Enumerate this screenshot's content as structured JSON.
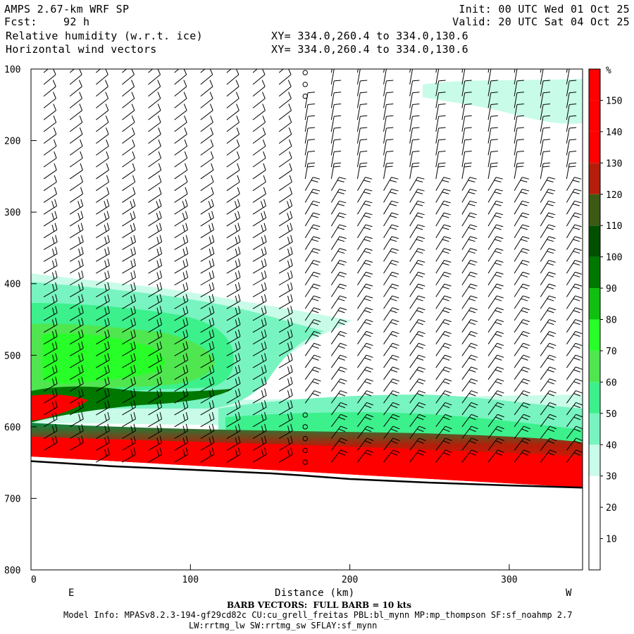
{
  "header": {
    "model": "AMPS 2.67-km WRF SP",
    "fcst_label": "Fcst:",
    "fcst_value": "92 h",
    "field1": "Relative humidity (w.r.t. ice)",
    "field2": "Horizontal wind vectors",
    "xy1": "XY= 334.0,260.4 to 334.0,130.6",
    "xy2": "XY= 334.0,260.4 to 334.0,130.6",
    "init": "Init: 00 UTC Wed 01 Oct 25",
    "valid": "Valid: 20 UTC Sat 04 Oct 25"
  },
  "footer": {
    "barb_note": "BARB VECTORS:  FULL BARB = 10 kts",
    "model_info": "Model Info: MPASv8.2.3-194-gf29cd82c CU:cu_grell_freitas PBL:bl_mynn MP:mp_thompson SF:sf_noahmp 2.7",
    "model_info2": "LW:rrtmg_lw SW:rrtmg_sw SFLAY:sf_mynn"
  },
  "colors": {
    "surface_line": "#000000",
    "low_rh": "#c8fce8",
    "mid_rh": "#3cf08c",
    "high_rh": "#ff0000"
  },
  "chart_data": {
    "type": "heatmap",
    "xlabel": "Distance (km)",
    "x_end_labels": [
      "E",
      "W"
    ],
    "x_ticks": [
      0,
      100,
      200,
      300
    ],
    "y_ticks": [
      100,
      200,
      300,
      400,
      500,
      600,
      700,
      800
    ],
    "xlim": [
      0,
      346
    ],
    "ylim": [
      800,
      100
    ],
    "colorbar": {
      "unit": "%",
      "labels": [
        10,
        20,
        30,
        40,
        50,
        60,
        70,
        80,
        90,
        100,
        110,
        120,
        130,
        140,
        150
      ],
      "colors": [
        "#ffffff",
        "#ffffff",
        "#ffffff",
        "#c8fce8",
        "#78f4c0",
        "#3cf08c",
        "#50e650",
        "#28ff28",
        "#10c010",
        "#007800",
        "#005000",
        "#3c5a14",
        "#b41e0a",
        "#ff0000",
        "#ff0000",
        "#ff0000"
      ]
    },
    "surface_pressure": {
      "x": [
        0,
        50,
        100,
        150,
        170,
        200,
        250,
        300,
        346
      ],
      "p": [
        648,
        655,
        660,
        665,
        668,
        673,
        678,
        682,
        685
      ]
    },
    "rh_regions": [
      {
        "level": "30-40",
        "desc": "upper-right band",
        "x": [
          250,
          346
        ],
        "p": [
          110,
          180
        ]
      },
      {
        "level": "40-90",
        "desc": "mid-level moist layer",
        "x": [
          0,
          200
        ],
        "p": [
          390,
          560
        ]
      },
      {
        "level": "40-70",
        "desc": "lower moist band",
        "x": [
          130,
          346
        ],
        "p": [
          550,
          625
        ]
      },
      {
        "level": "110-150",
        "desc": "near-surface saturated layer",
        "x": [
          0,
          346
        ],
        "p": [
          610,
          685
        ]
      }
    ]
  }
}
